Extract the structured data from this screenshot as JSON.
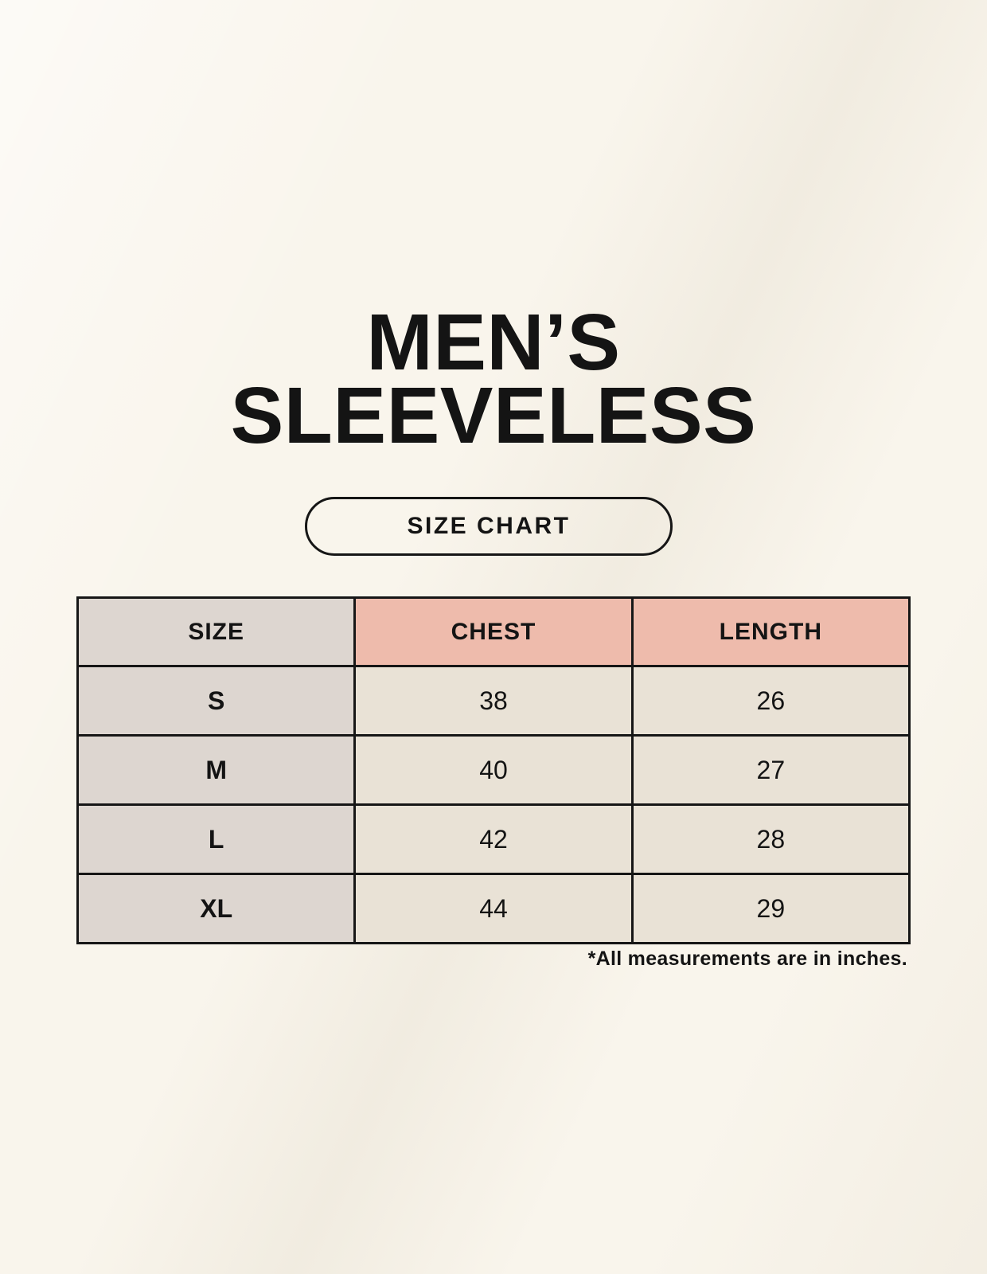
{
  "page": {
    "title_line1": "MEN’S",
    "title_line2": "SLEEVELESS",
    "badge_label": "SIZE CHART",
    "footnote": "*All measurements are in inches."
  },
  "table": {
    "headers": [
      {
        "label": "SIZE"
      },
      {
        "label": "CHEST"
      },
      {
        "label": "LENGTH"
      }
    ],
    "rows": [
      {
        "size": "S",
        "chest": "38",
        "length": "26"
      },
      {
        "size": "M",
        "chest": "40",
        "length": "27"
      },
      {
        "size": "L",
        "chest": "42",
        "length": "28"
      },
      {
        "size": "XL",
        "chest": "44",
        "length": "29"
      }
    ]
  },
  "colors": {
    "background": "#f9f5ec",
    "header_pink": "#eebbac",
    "size_column": "#ddd6d0",
    "cell_cream": "#e9e2d6",
    "border": "#161616",
    "text": "#141414"
  }
}
